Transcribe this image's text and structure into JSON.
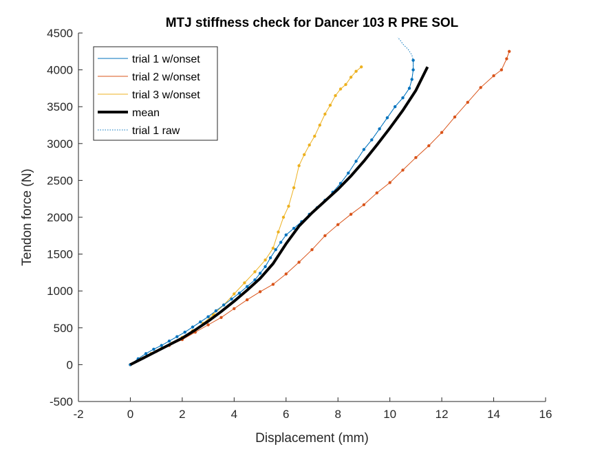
{
  "chart_data": {
    "type": "line",
    "title": "MTJ stiffness check for Dancer 103 R PRE SOL",
    "xlabel": "Displacement (mm)",
    "ylabel": "Tendon force (N)",
    "xlim": [
      -2,
      16
    ],
    "ylim": [
      -500,
      4500
    ],
    "xticks": [
      "-2",
      "0",
      "2",
      "4",
      "6",
      "8",
      "10",
      "12",
      "14",
      "16"
    ],
    "yticks": [
      "-500",
      "0",
      "500",
      "1000",
      "1500",
      "2000",
      "2500",
      "3000",
      "3500",
      "4000",
      "4500"
    ],
    "grid": false,
    "legend_position": "top-left",
    "series": [
      {
        "name": "trial 1 w/onset",
        "color": "#0072BD",
        "style": "solid-with-dot-markers",
        "x": [
          0,
          0.3,
          0.6,
          0.9,
          1.2,
          1.5,
          1.8,
          2.1,
          2.4,
          2.7,
          3.0,
          3.3,
          3.6,
          3.9,
          4.2,
          4.5,
          4.8,
          5.0,
          5.2,
          5.4,
          5.6,
          5.8,
          6.0,
          6.3,
          6.6,
          6.9,
          7.2,
          7.5,
          7.8,
          8.1,
          8.4,
          8.7,
          9.0,
          9.3,
          9.6,
          9.9,
          10.2,
          10.5,
          10.75,
          10.85,
          10.9,
          10.9
        ],
        "y": [
          0,
          80,
          150,
          210,
          260,
          320,
          380,
          440,
          510,
          580,
          650,
          730,
          810,
          890,
          970,
          1060,
          1150,
          1240,
          1330,
          1450,
          1560,
          1660,
          1760,
          1850,
          1940,
          2040,
          2130,
          2230,
          2340,
          2460,
          2600,
          2760,
          2920,
          3050,
          3200,
          3350,
          3500,
          3620,
          3750,
          3870,
          4000,
          4130
        ]
      },
      {
        "name": "trial 2 w/onset",
        "color": "#D95319",
        "style": "solid-with-dot-markers",
        "x": [
          0,
          0.5,
          1.0,
          1.5,
          2.0,
          2.5,
          3.0,
          3.5,
          4.0,
          4.5,
          5.0,
          5.5,
          6.0,
          6.5,
          7.0,
          7.5,
          8.0,
          8.5,
          9.0,
          9.5,
          10.0,
          10.5,
          11.0,
          11.5,
          12.0,
          12.5,
          13.0,
          13.5,
          14.0,
          14.3,
          14.5,
          14.6
        ],
        "y": [
          0,
          90,
          180,
          260,
          340,
          440,
          540,
          640,
          760,
          880,
          990,
          1090,
          1230,
          1390,
          1560,
          1750,
          1900,
          2040,
          2170,
          2330,
          2470,
          2640,
          2810,
          2970,
          3150,
          3360,
          3560,
          3760,
          3920,
          4000,
          4150,
          4250
        ]
      },
      {
        "name": "trial 3 w/onset",
        "color": "#EDB120",
        "style": "solid-with-dot-markers",
        "x": [
          0,
          0.4,
          0.8,
          1.2,
          1.6,
          2.0,
          2.4,
          2.8,
          3.2,
          3.6,
          4.0,
          4.4,
          4.8,
          5.2,
          5.5,
          5.7,
          5.9,
          6.1,
          6.3,
          6.5,
          6.7,
          6.9,
          7.1,
          7.3,
          7.5,
          7.7,
          7.9,
          8.1,
          8.3,
          8.5,
          8.7,
          8.9
        ],
        "y": [
          0,
          80,
          150,
          220,
          290,
          370,
          460,
          560,
          680,
          810,
          960,
          1110,
          1260,
          1420,
          1580,
          1800,
          2000,
          2150,
          2400,
          2700,
          2850,
          2980,
          3100,
          3250,
          3400,
          3520,
          3650,
          3740,
          3800,
          3900,
          3980,
          4040
        ]
      },
      {
        "name": "mean",
        "color": "#000000",
        "style": "thick-solid",
        "x": [
          0,
          0.5,
          1.0,
          1.5,
          2.0,
          2.5,
          3.0,
          3.5,
          4.0,
          4.5,
          5.0,
          5.5,
          6.0,
          6.5,
          7.0,
          7.5,
          8.0,
          8.5,
          9.0,
          9.5,
          10.0,
          10.5,
          11.0,
          11.45
        ],
        "y": [
          0,
          90,
          180,
          270,
          360,
          470,
          590,
          720,
          860,
          1010,
          1170,
          1370,
          1640,
          1880,
          2060,
          2220,
          2380,
          2560,
          2760,
          2980,
          3210,
          3450,
          3720,
          4040
        ]
      },
      {
        "name": "trial 1 raw",
        "color": "#0072BD",
        "style": "dotted",
        "x": [
          0,
          0.3,
          0.6,
          0.9,
          1.2,
          1.5,
          1.8,
          2.1,
          2.4,
          2.7,
          3.0,
          3.3,
          3.6,
          3.9,
          4.2,
          4.5,
          4.8,
          5.0,
          5.2,
          5.4,
          5.6,
          5.8,
          6.0,
          6.3,
          6.6,
          6.9,
          7.2,
          7.5,
          7.8,
          8.1,
          8.4,
          8.7,
          9.0,
          9.3,
          9.6,
          9.9,
          10.2,
          10.5,
          10.75,
          10.85,
          10.9,
          10.9,
          10.85,
          10.7,
          10.5,
          10.4,
          10.3
        ],
        "y": [
          0,
          80,
          150,
          210,
          260,
          320,
          380,
          440,
          510,
          580,
          650,
          730,
          810,
          890,
          970,
          1060,
          1150,
          1240,
          1330,
          1450,
          1560,
          1660,
          1760,
          1850,
          1940,
          2040,
          2130,
          2230,
          2340,
          2460,
          2600,
          2760,
          2920,
          3050,
          3200,
          3350,
          3500,
          3620,
          3750,
          3870,
          4000,
          4130,
          4200,
          4280,
          4350,
          4400,
          4440
        ]
      }
    ]
  }
}
